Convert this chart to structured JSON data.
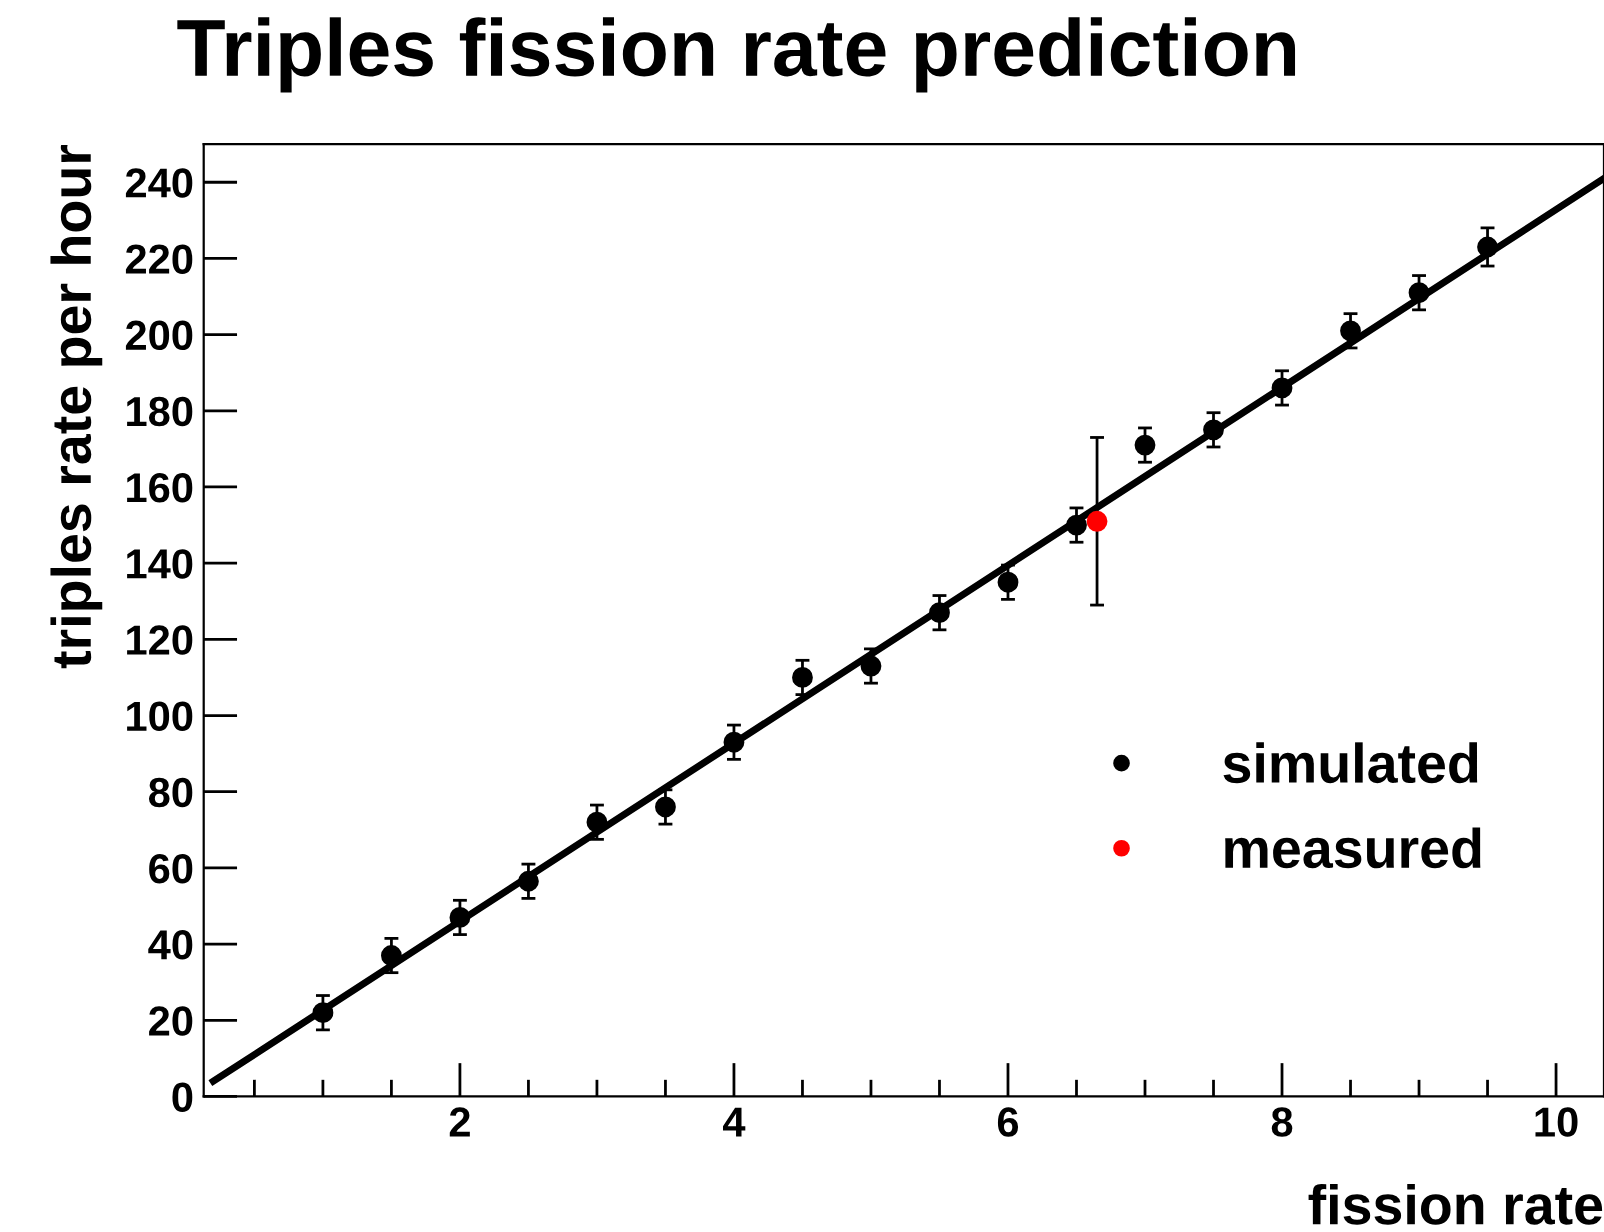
{
  "chart_data": {
    "type": "scatter",
    "title": "Triples fission rate prediction",
    "xlabel": "fission rate",
    "ylabel": "triples rate per hour",
    "xlim": [
      0.13,
      10.35
    ],
    "ylim": [
      0,
      250
    ],
    "xticks": [
      2,
      4,
      6,
      8,
      10
    ],
    "yticks": [
      0,
      20,
      40,
      60,
      80,
      100,
      120,
      140,
      160,
      180,
      200,
      220,
      240
    ],
    "grid": false,
    "legend": "right",
    "marker": "circle",
    "series": [
      {
        "name": "simulated",
        "color": "#000000",
        "x": [
          1,
          1.5,
          2,
          2.5,
          3,
          3.5,
          4,
          4.5,
          5,
          5.5,
          6,
          6.5,
          7,
          7.5,
          8,
          8.5,
          9,
          9.5
        ],
        "values": [
          22,
          37,
          47,
          56.5,
          72,
          76,
          93,
          110,
          113,
          127,
          135,
          150,
          171,
          175,
          186,
          201,
          211,
          223
        ],
        "errors": [
          4.5,
          4.5,
          4.5,
          4.5,
          4.5,
          4.5,
          4.5,
          4.5,
          4.5,
          4.5,
          4.5,
          4.5,
          4.5,
          4.5,
          4.5,
          4.5,
          4.5,
          5
        ]
      },
      {
        "name": "measured",
        "color": "#ff0000",
        "x": [
          6.65
        ],
        "values": [
          151
        ],
        "errors": [
          22
        ]
      },
      {
        "type": "line",
        "color": "#000000",
        "x": [
          0.2,
          10.35
        ],
        "values": [
          4,
          241
        ],
        "line_style": "solid",
        "marker": "none"
      }
    ]
  }
}
